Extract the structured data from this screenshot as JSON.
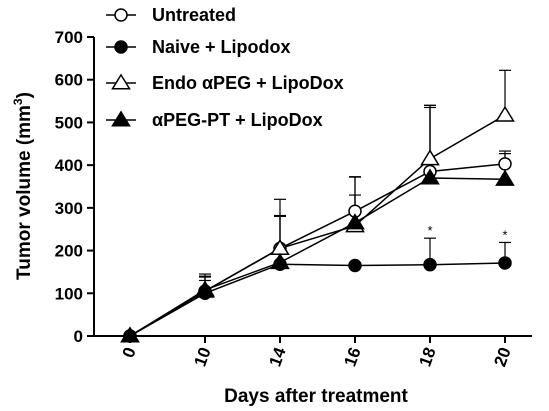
{
  "chart_data": {
    "type": "line",
    "xlabel": "Days after treatment",
    "ylabel": "Tumor volume (mm",
    "ylabel_sup": "3",
    "ylabel_close": ")",
    "ylim": [
      0,
      700
    ],
    "yticks": [
      0,
      100,
      200,
      300,
      400,
      500,
      600,
      700
    ],
    "categories": [
      "0",
      "10",
      "14",
      "16",
      "18",
      "20"
    ],
    "grid": false,
    "legend_position": "top-left",
    "series": [
      {
        "name": "Untreated",
        "marker": "circle-open",
        "values": [
          0,
          105,
          205,
          292,
          385,
          403
        ],
        "err": [
          0,
          40,
          75,
          80,
          155,
          30
        ]
      },
      {
        "name": "Naive + Lipodox",
        "marker": "circle-filled",
        "values": [
          0,
          100,
          168,
          165,
          167,
          171
        ],
        "err": [
          0,
          30,
          35,
          0,
          62,
          48
        ]
      },
      {
        "name": "Endo αPEG + LipoDox",
        "marker": "triangle-open",
        "values": [
          0,
          105,
          205,
          258,
          415,
          517
        ],
        "err": [
          0,
          35,
          115,
          115,
          125,
          105
        ]
      },
      {
        "name": "αPEG-PT + LipoDox",
        "marker": "triangle-filled",
        "values": [
          0,
          108,
          172,
          265,
          370,
          367
        ],
        "err": [
          0,
          30,
          110,
          65,
          165,
          60
        ]
      }
    ],
    "annotations": [
      {
        "text": "*",
        "x": "18",
        "y": 255
      },
      {
        "text": "*",
        "x": "20",
        "y": 245
      }
    ],
    "colors": {
      "line": "#000000",
      "fill": "#ffffff"
    }
  }
}
